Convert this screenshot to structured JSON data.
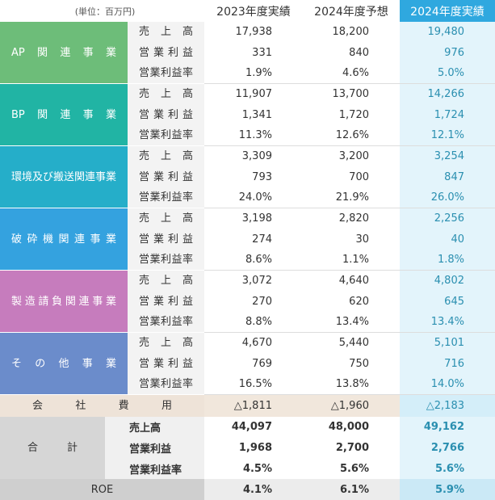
{
  "header": {
    "unit": "(単位：百万円)",
    "columns": [
      "2023年度実績",
      "2024年度予想",
      "2024年度実績"
    ]
  },
  "segments": [
    {
      "name": "AP関連事業",
      "rows": [
        [
          "売上高",
          "17,938",
          "18,200",
          "19,480"
        ],
        [
          "営業利益",
          "331",
          "840",
          "976"
        ],
        [
          "営業利益率",
          "1.9%",
          "4.6%",
          "5.0%"
        ]
      ]
    },
    {
      "name": "BP関連事業",
      "rows": [
        [
          "売上高",
          "11,907",
          "13,700",
          "14,266"
        ],
        [
          "営業利益",
          "1,341",
          "1,720",
          "1,724"
        ],
        [
          "営業利益率",
          "11.3%",
          "12.6%",
          "12.1%"
        ]
      ]
    },
    {
      "name": "環境及び搬送関連事業",
      "rows": [
        [
          "売上高",
          "3,309",
          "3,200",
          "3,254"
        ],
        [
          "営業利益",
          "793",
          "700",
          "847"
        ],
        [
          "営業利益率",
          "24.0%",
          "21.9%",
          "26.0%"
        ]
      ]
    },
    {
      "name": "破砕機関連事業",
      "rows": [
        [
          "売上高",
          "3,198",
          "2,820",
          "2,256"
        ],
        [
          "営業利益",
          "274",
          "30",
          "40"
        ],
        [
          "営業利益率",
          "8.6%",
          "1.1%",
          "1.8%"
        ]
      ]
    },
    {
      "name": "製造請負関連事業",
      "rows": [
        [
          "売上高",
          "3,072",
          "4,640",
          "4,802"
        ],
        [
          "営業利益",
          "270",
          "620",
          "645"
        ],
        [
          "営業利益率",
          "8.8%",
          "13.4%",
          "13.4%"
        ]
      ]
    },
    {
      "name": "その他事業",
      "rows": [
        [
          "売上高",
          "4,670",
          "5,440",
          "5,101"
        ],
        [
          "営業利益",
          "769",
          "750",
          "716"
        ],
        [
          "営業利益率",
          "16.5%",
          "13.8%",
          "14.0%"
        ]
      ]
    }
  ],
  "company_expense": {
    "label": "会社費用",
    "values": [
      "△1,811",
      "△1,960",
      "△2,183"
    ]
  },
  "total": {
    "label": "合計",
    "rows": [
      [
        "売上高",
        "44,097",
        "48,000",
        "49,162"
      ],
      [
        "営業利益",
        "1,968",
        "2,700",
        "2,766"
      ],
      [
        "営業利益率",
        "4.5%",
        "5.6%",
        "5.6%"
      ]
    ]
  },
  "roe": {
    "label": "ROE",
    "values": [
      "4.1%",
      "6.1%",
      "5.9%"
    ]
  }
}
